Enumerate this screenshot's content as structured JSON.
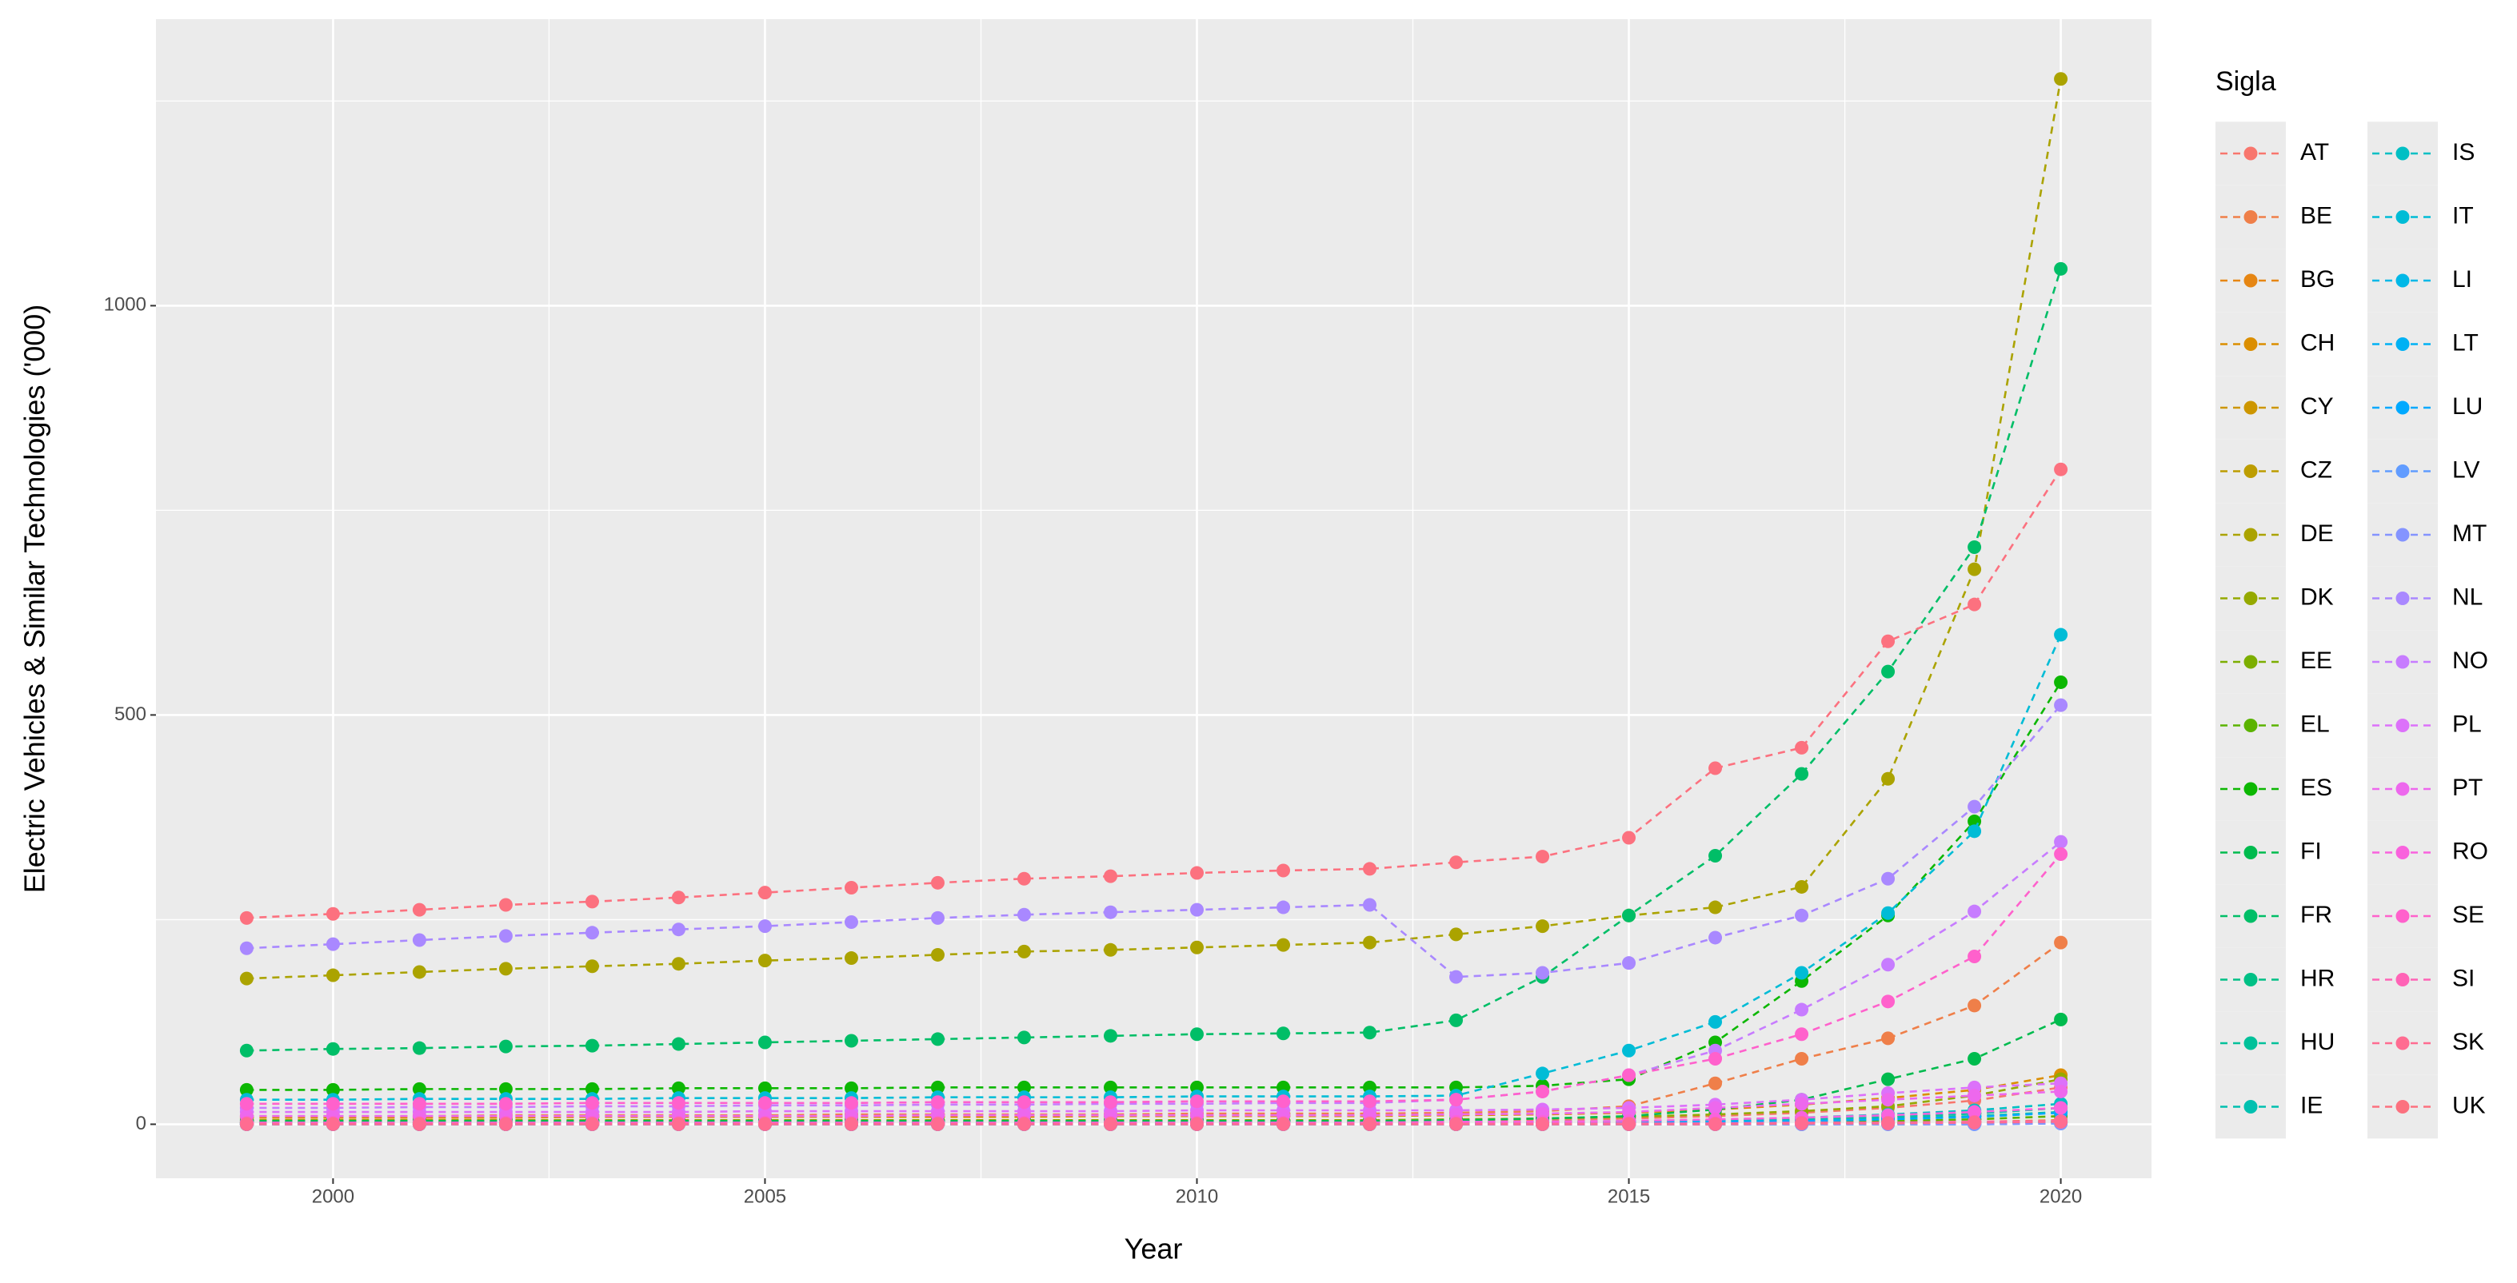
{
  "chart_data": {
    "type": "line",
    "x_label": "Year",
    "y_label": "Electric Vehicles & Similar Technologies ('000)",
    "legend_title": "Sigla",
    "x": [
      1999,
      2000,
      2001,
      2002,
      2003,
      2004,
      2005,
      2006,
      2007,
      2008,
      2009,
      2010,
      2011,
      2012,
      2013,
      2014,
      2015,
      2016,
      2017,
      2018,
      2019,
      2020
    ],
    "xlim": [
      1997.95,
      2021.05
    ],
    "ylim": [
      -66,
      1350
    ],
    "xticks": [
      2000,
      2005,
      2010,
      2015,
      2020
    ],
    "yticks": [
      0,
      500,
      1000
    ],
    "grid": true,
    "line_style": "dashed",
    "markers": true,
    "legend_position": "right",
    "series": [
      {
        "name": "AT",
        "color": "#F8766D",
        "values": [
          3,
          3,
          3,
          3,
          3,
          3,
          3,
          3,
          3,
          3,
          3,
          3,
          3,
          3,
          4,
          5,
          7,
          10,
          14,
          20,
          29,
          45
        ]
      },
      {
        "name": "BE",
        "color": "#EF7F49",
        "values": [
          10,
          10,
          10,
          11,
          11,
          11,
          11,
          12,
          12,
          12,
          12,
          13,
          13,
          13,
          14,
          16,
          22,
          50,
          80,
          105,
          145,
          222
        ]
      },
      {
        "name": "BG",
        "color": "#E68613",
        "values": [
          0,
          0,
          0,
          0,
          0,
          0,
          0,
          0,
          0,
          0,
          0,
          0,
          0,
          0,
          0,
          0,
          1,
          1,
          1,
          2,
          3,
          5
        ]
      },
      {
        "name": "CH",
        "color": "#DB8E00",
        "values": [
          8,
          8,
          8,
          8,
          9,
          9,
          9,
          9,
          9,
          9,
          10,
          10,
          10,
          10,
          11,
          12,
          14,
          18,
          24,
          32,
          42,
          60
        ]
      },
      {
        "name": "CY",
        "color": "#CD9600",
        "values": [
          0,
          0,
          0,
          0,
          0,
          0,
          0,
          0,
          0,
          0,
          0,
          0,
          0,
          0,
          0,
          0,
          0,
          0,
          0,
          1,
          1,
          2
        ]
      },
      {
        "name": "CZ",
        "color": "#BD9D00",
        "values": [
          2,
          2,
          2,
          2,
          2,
          2,
          2,
          2,
          2,
          2,
          2,
          2,
          2,
          2,
          3,
          3,
          3,
          4,
          6,
          9,
          13,
          20
        ]
      },
      {
        "name": "DE",
        "color": "#ABA300",
        "values": [
          178,
          182,
          186,
          190,
          193,
          196,
          200,
          203,
          207,
          211,
          213,
          216,
          219,
          222,
          232,
          242,
          255,
          265,
          290,
          422,
          678,
          1277
        ]
      },
      {
        "name": "DK",
        "color": "#95A900",
        "values": [
          5,
          5,
          5,
          5,
          5,
          5,
          5,
          5,
          5,
          5,
          5,
          5,
          5,
          5,
          6,
          7,
          9,
          12,
          16,
          22,
          35,
          55
        ]
      },
      {
        "name": "EE",
        "color": "#7CAE00",
        "values": [
          0,
          0,
          0,
          0,
          0,
          0,
          0,
          0,
          0,
          0,
          0,
          0,
          0,
          0,
          0,
          1,
          1,
          1,
          1,
          2,
          2,
          3
        ]
      },
      {
        "name": "EL",
        "color": "#5BB300",
        "values": [
          2,
          2,
          2,
          2,
          2,
          2,
          2,
          2,
          2,
          2,
          2,
          2,
          2,
          2,
          2,
          2,
          2,
          3,
          3,
          4,
          6,
          10
        ]
      },
      {
        "name": "ES",
        "color": "#0CB702",
        "values": [
          42,
          42,
          43,
          43,
          43,
          44,
          44,
          44,
          45,
          45,
          45,
          45,
          45,
          45,
          45,
          47,
          55,
          100,
          175,
          255,
          370,
          540
        ]
      },
      {
        "name": "FI",
        "color": "#00BB4E",
        "values": [
          4,
          4,
          4,
          4,
          4,
          4,
          4,
          4,
          4,
          4,
          4,
          4,
          4,
          4,
          5,
          7,
          10,
          18,
          30,
          55,
          80,
          128
        ]
      },
      {
        "name": "FR",
        "color": "#00BE67",
        "values": [
          90,
          92,
          93,
          95,
          96,
          98,
          100,
          102,
          104,
          106,
          108,
          110,
          111,
          112,
          127,
          180,
          255,
          328,
          428,
          553,
          705,
          1045
        ]
      },
      {
        "name": "HR",
        "color": "#00C085",
        "values": [
          0,
          0,
          0,
          0,
          0,
          0,
          0,
          0,
          0,
          0,
          0,
          0,
          0,
          0,
          0,
          0,
          0,
          1,
          1,
          1,
          2,
          3
        ]
      },
      {
        "name": "HU",
        "color": "#00C19A",
        "values": [
          2,
          2,
          2,
          2,
          2,
          2,
          2,
          2,
          2,
          2,
          2,
          2,
          2,
          2,
          2,
          2,
          3,
          4,
          5,
          7,
          10,
          15
        ]
      },
      {
        "name": "IE",
        "color": "#00C0B0",
        "values": [
          2,
          2,
          2,
          2,
          2,
          2,
          2,
          2,
          2,
          2,
          2,
          2,
          2,
          2,
          2,
          3,
          4,
          5,
          7,
          9,
          13,
          20
        ]
      },
      {
        "name": "IS",
        "color": "#00BFC4",
        "values": [
          1,
          1,
          1,
          1,
          1,
          1,
          1,
          1,
          1,
          1,
          1,
          1,
          1,
          1,
          1,
          2,
          3,
          5,
          8,
          12,
          17,
          25
        ]
      },
      {
        "name": "IT",
        "color": "#00BCD6",
        "values": [
          30,
          30,
          31,
          31,
          31,
          32,
          32,
          32,
          33,
          33,
          33,
          34,
          34,
          34,
          35,
          62,
          90,
          125,
          185,
          258,
          358,
          598
        ]
      },
      {
        "name": "LI",
        "color": "#00B8E7",
        "values": [
          0,
          0,
          0,
          0,
          0,
          0,
          0,
          0,
          0,
          0,
          0,
          0,
          0,
          0,
          0,
          0,
          0,
          0,
          0,
          0,
          0,
          1
        ]
      },
      {
        "name": "LT",
        "color": "#00B1F4",
        "values": [
          0,
          0,
          0,
          0,
          0,
          0,
          0,
          0,
          0,
          0,
          0,
          0,
          0,
          0,
          0,
          0,
          0,
          0,
          1,
          1,
          2,
          3
        ]
      },
      {
        "name": "LU",
        "color": "#00A9FF",
        "values": [
          1,
          1,
          1,
          1,
          1,
          1,
          1,
          1,
          1,
          1,
          1,
          1,
          1,
          1,
          1,
          1,
          2,
          3,
          4,
          6,
          9,
          14
        ]
      },
      {
        "name": "LV",
        "color": "#619CFF",
        "values": [
          0,
          0,
          0,
          0,
          0,
          0,
          0,
          0,
          0,
          0,
          0,
          0,
          0,
          0,
          0,
          0,
          0,
          0,
          0,
          1,
          1,
          2
        ]
      },
      {
        "name": "MT",
        "color": "#8494FF",
        "values": [
          0,
          0,
          0,
          0,
          0,
          0,
          0,
          0,
          0,
          0,
          0,
          0,
          0,
          0,
          0,
          0,
          0,
          0,
          0,
          0,
          0,
          1
        ]
      },
      {
        "name": "NL",
        "color": "#A988FF",
        "values": [
          215,
          220,
          225,
          230,
          234,
          238,
          242,
          247,
          252,
          256,
          259,
          262,
          265,
          268,
          180,
          185,
          197,
          228,
          255,
          300,
          388,
          512
        ]
      },
      {
        "name": "NO",
        "color": "#C77CFF",
        "values": [
          20,
          20,
          21,
          21,
          22,
          22,
          23,
          23,
          24,
          24,
          25,
          25,
          26,
          26,
          30,
          40,
          60,
          90,
          140,
          195,
          260,
          345
        ]
      },
      {
        "name": "PL",
        "color": "#DC71FA",
        "values": [
          15,
          15,
          15,
          15,
          15,
          15,
          16,
          16,
          16,
          16,
          16,
          17,
          17,
          17,
          17,
          18,
          20,
          24,
          30,
          38,
          45,
          50
        ]
      },
      {
        "name": "PT",
        "color": "#ED68ED",
        "values": [
          10,
          10,
          10,
          10,
          10,
          10,
          10,
          10,
          11,
          11,
          11,
          11,
          11,
          11,
          12,
          13,
          15,
          20,
          25,
          30,
          35,
          40
        ]
      },
      {
        "name": "RO",
        "color": "#F962DD",
        "values": [
          2,
          2,
          2,
          2,
          2,
          2,
          2,
          2,
          2,
          2,
          2,
          2,
          2,
          2,
          3,
          3,
          4,
          6,
          8,
          11,
          15,
          20
        ]
      },
      {
        "name": "SE",
        "color": "#FF61CC",
        "values": [
          25,
          25,
          25,
          25,
          26,
          26,
          26,
          26,
          27,
          27,
          27,
          28,
          28,
          28,
          30,
          40,
          60,
          80,
          110,
          150,
          205,
          330
        ]
      },
      {
        "name": "SI",
        "color": "#FF63B6",
        "values": [
          1,
          1,
          1,
          1,
          1,
          1,
          1,
          1,
          1,
          1,
          1,
          1,
          1,
          1,
          1,
          1,
          1,
          1,
          2,
          2,
          3,
          4
        ]
      },
      {
        "name": "SK",
        "color": "#FF6C91",
        "values": [
          0,
          0,
          0,
          0,
          0,
          0,
          0,
          0,
          0,
          0,
          0,
          0,
          0,
          0,
          0,
          0,
          0,
          0,
          1,
          1,
          2,
          3
        ]
      },
      {
        "name": "UK",
        "color": "#FC717F",
        "values": [
          252,
          257,
          262,
          268,
          272,
          277,
          283,
          289,
          295,
          300,
          303,
          307,
          310,
          312,
          320,
          327,
          350,
          435,
          460,
          590,
          635,
          800
        ]
      }
    ]
  }
}
